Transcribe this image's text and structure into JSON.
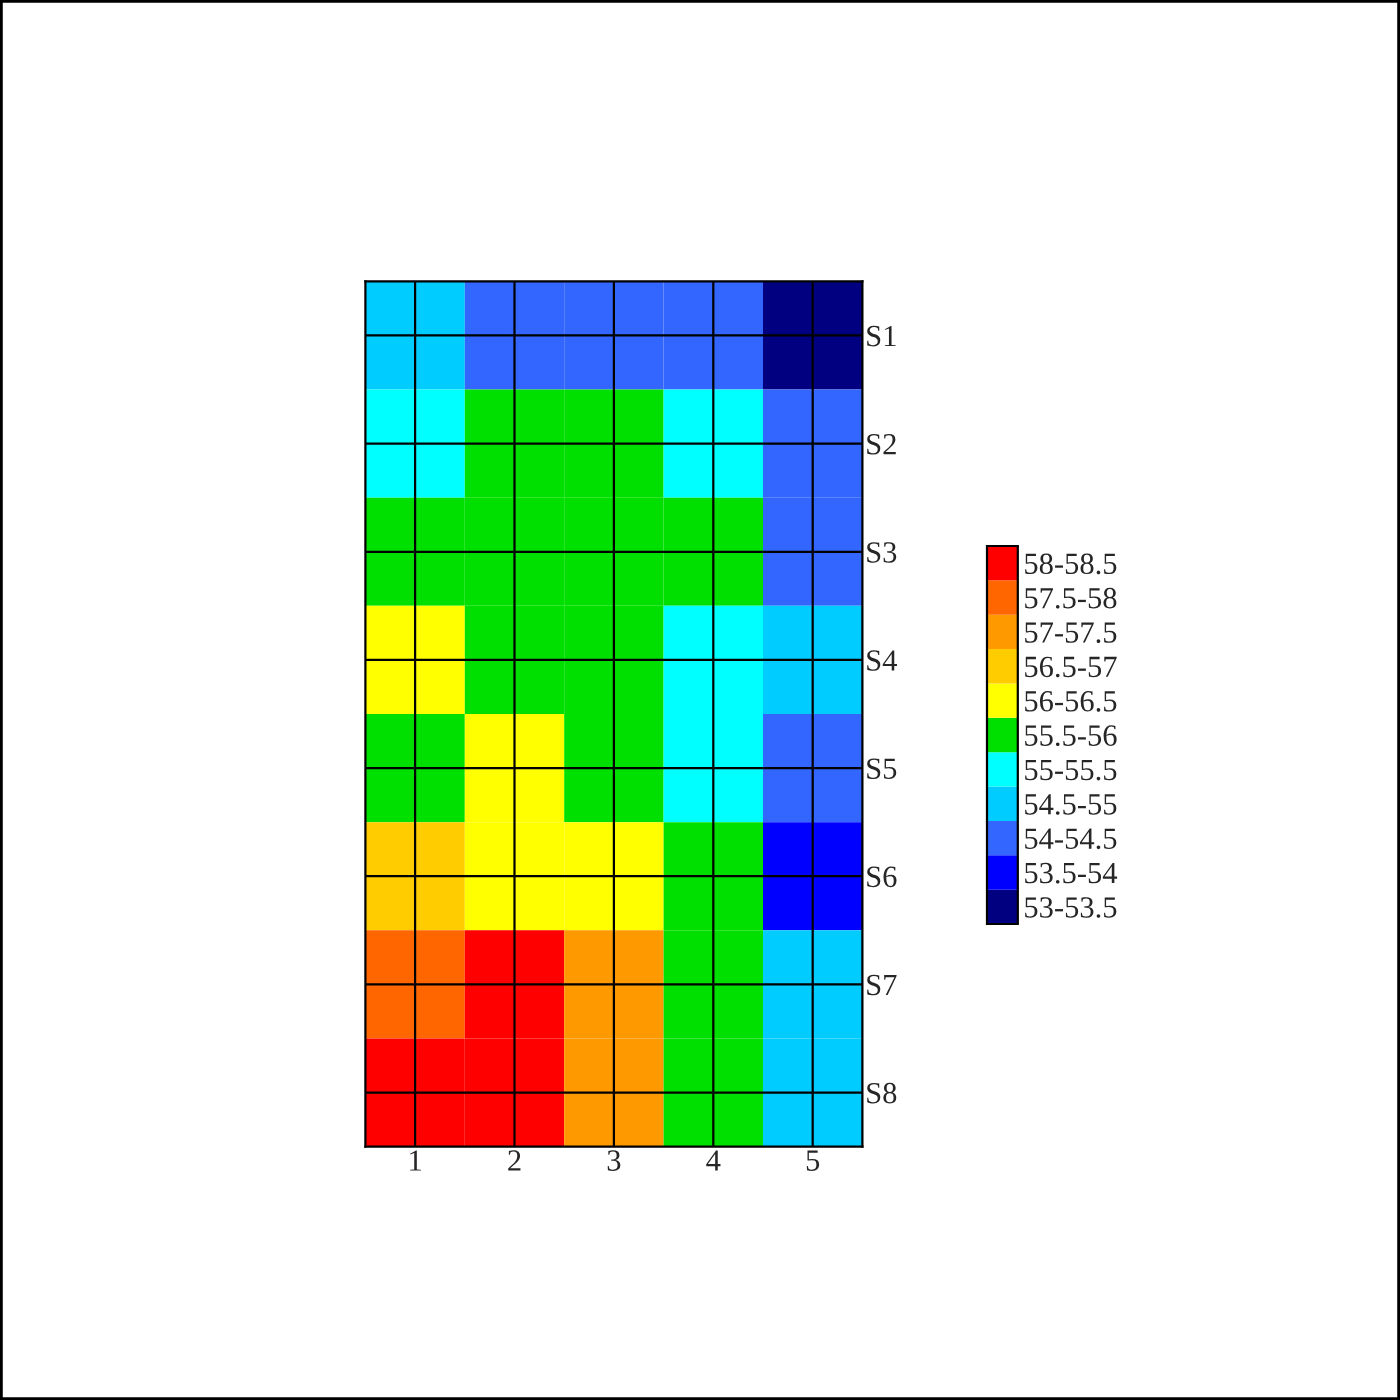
{
  "chart_data": {
    "type": "heatmap",
    "categories": [
      "1",
      "2",
      "3",
      "4",
      "5"
    ],
    "y_categories": [
      "S1",
      "S2",
      "S3",
      "S4",
      "S5",
      "S6",
      "S7",
      "S8"
    ],
    "cells": [
      [
        54.7,
        54.3,
        54.2,
        54.0,
        53.0
      ],
      [
        55.2,
        55.6,
        55.6,
        55.2,
        54.0
      ],
      [
        55.7,
        55.9,
        55.8,
        55.5,
        54.4
      ],
      [
        56.0,
        55.9,
        55.5,
        55.0,
        54.5
      ],
      [
        55.9,
        56.0,
        55.7,
        55.2,
        54.0
      ],
      [
        56.6,
        56.4,
        56.2,
        55.5,
        53.9
      ],
      [
        57.5,
        58.1,
        57.2,
        55.5,
        54.5
      ],
      [
        58.5,
        58.0,
        57.0,
        55.7,
        54.5
      ]
    ],
    "clim": [
      53,
      58.5
    ],
    "colors": [
      "#000080",
      "#0000ff",
      "#3366ff",
      "#00ccff",
      "#00ffff",
      "#00e000",
      "#ffff00",
      "#ffcc00",
      "#ff9900",
      "#ff6600",
      "#ff0000"
    ],
    "cticks": [
      {
        "value": 58.25,
        "label": "58-58.5"
      },
      {
        "value": 57.75,
        "label": "57.5-58"
      },
      {
        "value": 57.25,
        "label": "57-57.5"
      },
      {
        "value": 56.75,
        "label": "56.5-57"
      },
      {
        "value": 56.25,
        "label": "56-56.5"
      },
      {
        "value": 55.75,
        "label": "55.5-56"
      },
      {
        "value": 55.25,
        "label": "55-55.5"
      },
      {
        "value": 54.75,
        "label": "54.5-55"
      },
      {
        "value": 54.25,
        "label": "54-54.5"
      },
      {
        "value": 53.75,
        "label": "53.5-54"
      },
      {
        "value": 53.25,
        "label": "53-53.5"
      }
    ],
    "grid": true
  }
}
